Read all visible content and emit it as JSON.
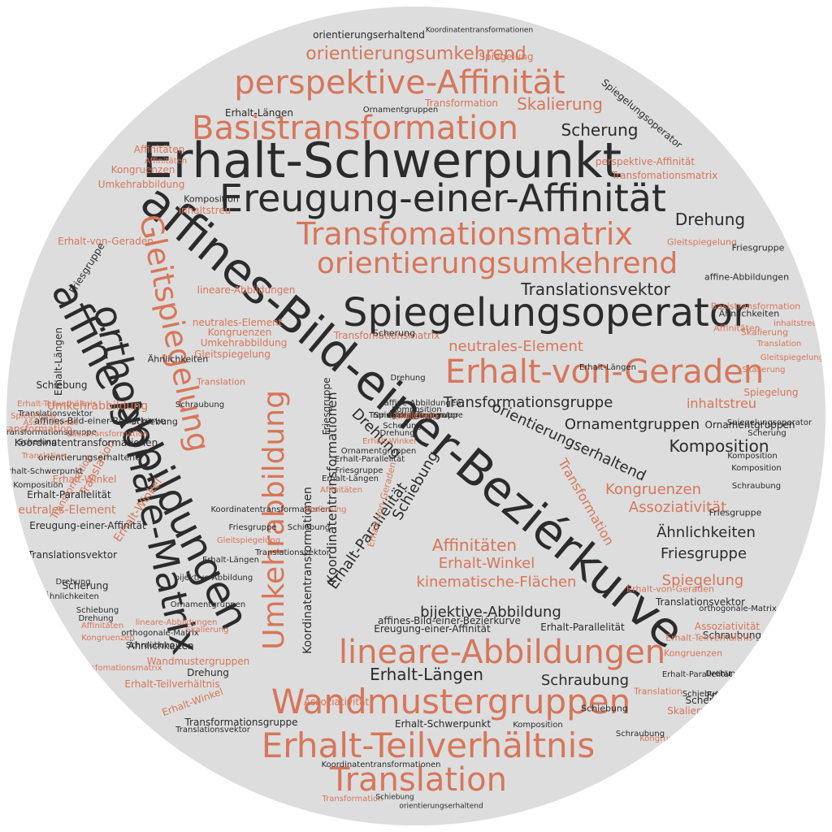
{
  "colors": {
    "dark": "#2b2b2b",
    "accent": "#d6765a",
    "background": "#dddddd"
  },
  "words": [
    {
      "text": "affines-Bild-einer-Beziérkurve",
      "style": "dark"
    },
    {
      "text": "Erhalt-Schwerpunkt",
      "style": "dark"
    },
    {
      "text": "Ereugung-einer-Affinität",
      "style": "dark"
    },
    {
      "text": "orthogonale-Matrix",
      "style": "dark"
    },
    {
      "text": "affine-Abbildungen",
      "style": "dark"
    },
    {
      "text": "Spiegelungsoperator",
      "style": "dark"
    },
    {
      "text": "Basistransformation",
      "style": "accent"
    },
    {
      "text": "Transfomationsmatrix",
      "style": "accent"
    },
    {
      "text": "perspektive-Affinität",
      "style": "accent"
    },
    {
      "text": "orientierungsumkehrend",
      "style": "accent"
    },
    {
      "text": "Erhalt-von-Geraden",
      "style": "accent"
    },
    {
      "text": "Gleitspiegelung",
      "style": "accent"
    },
    {
      "text": "Umkehrabbildung",
      "style": "accent"
    },
    {
      "text": "lineare-Abbildungen",
      "style": "accent"
    },
    {
      "text": "Wandmustergruppen",
      "style": "accent"
    },
    {
      "text": "Erhalt-Teilverhältnis",
      "style": "accent"
    },
    {
      "text": "Translation",
      "style": "accent"
    },
    {
      "text": "orientierungsumkehrend",
      "style": "accent"
    },
    {
      "text": "Skalierung",
      "style": "accent"
    },
    {
      "text": "Scherung",
      "style": "dark"
    },
    {
      "text": "Drehung",
      "style": "dark"
    },
    {
      "text": "Translationsvektor",
      "style": "dark"
    },
    {
      "text": "neutrales-Element",
      "style": "accent"
    },
    {
      "text": "Transformationsgruppe",
      "style": "dark"
    },
    {
      "text": "orientierungserhaltend",
      "style": "dark"
    },
    {
      "text": "Ornamentgruppen",
      "style": "dark"
    },
    {
      "text": "Komposition",
      "style": "dark"
    },
    {
      "text": "inhaltstreu",
      "style": "accent"
    },
    {
      "text": "Ähnlichkeiten",
      "style": "dark"
    },
    {
      "text": "Friesgruppe",
      "style": "dark"
    },
    {
      "text": "Spiegelung",
      "style": "accent"
    },
    {
      "text": "Kongruenzen",
      "style": "accent"
    },
    {
      "text": "Assoziativität",
      "style": "accent"
    },
    {
      "text": "Affinitäten",
      "style": "accent"
    },
    {
      "text": "Erhalt-Winkel",
      "style": "accent"
    },
    {
      "text": "kinematische-Flächen",
      "style": "accent"
    },
    {
      "text": "bijektive-Abbildung",
      "style": "dark"
    },
    {
      "text": "Erhalt-Längen",
      "style": "dark"
    },
    {
      "text": "Schraubung",
      "style": "dark"
    },
    {
      "text": "Koordinatentransformationen",
      "style": "dark"
    },
    {
      "text": "Erhalt-Parallelität",
      "style": "dark"
    },
    {
      "text": "Schiebung",
      "style": "dark"
    },
    {
      "text": "Drehung",
      "style": "dark"
    },
    {
      "text": "Transformation",
      "style": "accent"
    },
    {
      "text": "Friesgruppe",
      "style": "dark"
    },
    {
      "text": "Koordinatentransformationen",
      "style": "dark"
    },
    {
      "text": "Transfomationsmatrix",
      "style": "accent"
    },
    {
      "text": "Erhalt-von-Geraden",
      "style": "accent"
    },
    {
      "text": "Scherung",
      "style": "dark"
    },
    {
      "text": "Drehung",
      "style": "dark"
    },
    {
      "text": "Erhalt-Längen",
      "style": "dark"
    },
    {
      "text": "perspektive-Affinität",
      "style": "accent"
    },
    {
      "text": "Transfomationsmatrix",
      "style": "accent"
    },
    {
      "text": "Gleitspiegelung",
      "style": "accent"
    },
    {
      "text": "Spiegelungsoperator",
      "style": "dark"
    },
    {
      "text": "Transformation",
      "style": "accent"
    },
    {
      "text": "Ornamentgruppen",
      "style": "dark"
    },
    {
      "text": "Erhalt-Längen",
      "style": "dark"
    },
    {
      "text": "Spiegelung",
      "style": "accent"
    },
    {
      "text": "orientierungserhaltend",
      "style": "dark"
    },
    {
      "text": "Koordinatentransformationen",
      "style": "dark"
    },
    {
      "text": "Affinitäten",
      "style": "accent"
    },
    {
      "text": "Kongruenzen",
      "style": "accent"
    },
    {
      "text": "Umkehrabbildung",
      "style": "accent"
    },
    {
      "text": "Affinitäten",
      "style": "accent"
    },
    {
      "text": "Komposition",
      "style": "dark"
    },
    {
      "text": "inhaltstreu",
      "style": "accent"
    },
    {
      "text": "lineare-Abbildungen",
      "style": "accent"
    },
    {
      "text": "neutrales-Element",
      "style": "accent"
    },
    {
      "text": "Kongruenzen",
      "style": "accent"
    },
    {
      "text": "Umkehrabbildung",
      "style": "accent"
    },
    {
      "text": "Gleitspiegelung",
      "style": "accent"
    },
    {
      "text": "Translation",
      "style": "accent"
    },
    {
      "text": "Schraubung",
      "style": "dark"
    },
    {
      "text": "Ähnlichkeiten",
      "style": "dark"
    },
    {
      "text": "Schiebung",
      "style": "dark"
    },
    {
      "text": "Erhalt-Winkel",
      "style": "accent"
    },
    {
      "text": "Translation",
      "style": "accent"
    },
    {
      "text": "Transformation",
      "style": "accent"
    },
    {
      "text": "Ähnlichkeiten",
      "style": "dark"
    },
    {
      "text": "Wandmustergruppen",
      "style": "accent"
    },
    {
      "text": "Drehung",
      "style": "dark"
    },
    {
      "text": "Erhalt-Teilverhältnis",
      "style": "accent"
    },
    {
      "text": "Erhalt-Winkel",
      "style": "accent"
    },
    {
      "text": "Transformationsgruppe",
      "style": "dark"
    },
    {
      "text": "Translationsvektor",
      "style": "dark"
    },
    {
      "text": "Assoziativität",
      "style": "accent"
    },
    {
      "text": "Erhalt-Schwerpunkt",
      "style": "dark"
    },
    {
      "text": "Komposition",
      "style": "dark"
    },
    {
      "text": "Koordinatentransformationen",
      "style": "dark"
    },
    {
      "text": "Transformation",
      "style": "accent"
    },
    {
      "text": "Schiebung",
      "style": "dark"
    },
    {
      "text": "orientierungserhaltend",
      "style": "dark"
    },
    {
      "text": "affines-Bild-einer-Beziérkurve",
      "style": "dark"
    },
    {
      "text": "Ereugung-einer-Affinität",
      "style": "dark"
    },
    {
      "text": "Erhalt-Parallelität",
      "style": "dark"
    },
    {
      "text": "Translationsvektor",
      "style": "dark"
    },
    {
      "text": "orthogonale-Matrix",
      "style": "dark"
    },
    {
      "text": "Assoziativität",
      "style": "accent"
    },
    {
      "text": "Schraubung",
      "style": "dark"
    },
    {
      "text": "Kongruenzen",
      "style": "accent"
    },
    {
      "text": "Friesgruppe",
      "style": "dark"
    },
    {
      "text": "Scherung",
      "style": "dark"
    },
    {
      "text": "inhaltstreu",
      "style": "accent"
    },
    {
      "text": "Erhalt-Teilverhältnis",
      "style": "accent"
    },
    {
      "text": "Translation",
      "style": "accent"
    },
    {
      "text": "Schiebung",
      "style": "dark"
    },
    {
      "text": "Skalierung",
      "style": "accent"
    },
    {
      "text": "Kongruenzen",
      "style": "accent"
    },
    {
      "text": "Schraubung",
      "style": "dark"
    },
    {
      "text": "Scherung",
      "style": "dark"
    },
    {
      "text": "Erhalt-Parallelität",
      "style": "dark"
    },
    {
      "text": "Schiebung",
      "style": "dark"
    },
    {
      "text": "Drehung",
      "style": "dark"
    },
    {
      "text": "Erhalt-von-Geraden",
      "style": "accent"
    },
    {
      "text": "Friesgruppe",
      "style": "dark"
    },
    {
      "text": "Schraubung",
      "style": "dark"
    },
    {
      "text": "Skalierung",
      "style": "accent"
    },
    {
      "text": "Spiegelung",
      "style": "accent"
    },
    {
      "text": "Ähnlichkeiten",
      "style": "dark"
    },
    {
      "text": "Ornamentgruppen",
      "style": "dark"
    },
    {
      "text": "Komposition",
      "style": "dark"
    },
    {
      "text": "affine-Abbildungen",
      "style": "dark"
    },
    {
      "text": "Friesgruppe",
      "style": "dark"
    },
    {
      "text": "Basistransformation",
      "style": "accent"
    },
    {
      "text": "Affinitäten",
      "style": "accent"
    },
    {
      "text": "Gleitspiegelung",
      "style": "accent"
    },
    {
      "text": "Skalierung",
      "style": "accent"
    },
    {
      "text": "inhaltstreu",
      "style": "accent"
    },
    {
      "text": "Translation",
      "style": "accent"
    },
    {
      "text": "Spiegelungsoperator",
      "style": "dark"
    },
    {
      "text": "Scherung",
      "style": "dark"
    },
    {
      "text": "Komposition",
      "style": "dark"
    },
    {
      "text": "Erhalt-Längen",
      "style": "dark"
    },
    {
      "text": "neutrales-Element",
      "style": "accent"
    },
    {
      "text": "Ereugung-einer-Affinität",
      "style": "dark"
    },
    {
      "text": "Translationsvektor",
      "style": "dark"
    },
    {
      "text": "Erhalt-Parallelität",
      "style": "dark"
    },
    {
      "text": "Scherung",
      "style": "dark"
    },
    {
      "text": "Drehung",
      "style": "dark"
    },
    {
      "text": "Assoziativität",
      "style": "accent"
    },
    {
      "text": "Transformationsgruppe",
      "style": "dark"
    },
    {
      "text": "Schiebung",
      "style": "dark"
    },
    {
      "text": "Erhalt-von-Geraden",
      "style": "accent"
    },
    {
      "text": "Friesgruppe",
      "style": "dark"
    },
    {
      "text": "Umkehrabbildung",
      "style": "accent"
    },
    {
      "text": "affines-Bild-einer-Beziérkurve",
      "style": "dark"
    },
    {
      "text": "Basistransformation",
      "style": "accent"
    },
    {
      "text": "Koordinatentransformationen",
      "style": "dark"
    },
    {
      "text": "orientierungserhaltend",
      "style": "dark"
    },
    {
      "text": "Erhalt-Winkel",
      "style": "accent"
    },
    {
      "text": "Erhalt-Teilverhältnis",
      "style": "accent"
    },
    {
      "text": "Translationsvektor",
      "style": "dark"
    },
    {
      "text": "Transformation",
      "style": "accent"
    },
    {
      "text": "Scherung",
      "style": "dark"
    },
    {
      "text": "Erhalt-Schwerpunkt",
      "style": "dark"
    },
    {
      "text": "Spiegelung",
      "style": "accent"
    },
    {
      "text": "Translation",
      "style": "accent"
    },
    {
      "text": "Komposition",
      "style": "dark"
    },
    {
      "text": "Ähnlichkeiten",
      "style": "dark"
    },
    {
      "text": "Drehung",
      "style": "dark"
    },
    {
      "text": "Schiebung",
      "style": "dark"
    },
    {
      "text": "Affinitäten",
      "style": "accent"
    },
    {
      "text": "Kongruenzen",
      "style": "accent"
    },
    {
      "text": "Transfomationsmatrix",
      "style": "accent"
    },
    {
      "text": "Schraubung",
      "style": "dark"
    },
    {
      "text": "orthogonale-Matrix",
      "style": "dark"
    },
    {
      "text": "lineare-Abbildungen",
      "style": "accent"
    },
    {
      "text": "Skalierung",
      "style": "accent"
    },
    {
      "text": "Ornamentgruppen",
      "style": "dark"
    },
    {
      "text": "bijektive-Abbildung",
      "style": "dark"
    },
    {
      "text": "Erhalt-Längen",
      "style": "dark"
    },
    {
      "text": "Gleitspiegelung",
      "style": "accent"
    },
    {
      "text": "Friesgruppe",
      "style": "dark"
    },
    {
      "text": "Koordinatentransformationen",
      "style": "dark"
    },
    {
      "text": "Translationsvektor",
      "style": "dark"
    },
    {
      "text": "Schiebung",
      "style": "dark"
    },
    {
      "text": "Skalierung",
      "style": "accent"
    },
    {
      "text": "Affinitäten",
      "style": "accent"
    },
    {
      "text": "Erhalt-Längen",
      "style": "dark"
    },
    {
      "text": "Friesgruppe",
      "style": "dark"
    },
    {
      "text": "Erhalt-Parallelität",
      "style": "dark"
    },
    {
      "text": "Ornamentgruppen",
      "style": "dark"
    },
    {
      "text": "Erhalt-Winkel",
      "style": "accent"
    },
    {
      "text": "Drehung",
      "style": "dark"
    },
    {
      "text": "Scherung",
      "style": "dark"
    },
    {
      "text": "Translation",
      "style": "accent"
    },
    {
      "text": "Komposition",
      "style": "dark"
    },
    {
      "text": "affine-Abbildungen",
      "style": "dark"
    },
    {
      "text": "Kongruenzen",
      "style": "accent"
    },
    {
      "text": "Transformationsgruppe",
      "style": "dark"
    },
    {
      "text": "Schraubung",
      "style": "dark"
    },
    {
      "text": "Friesgruppe",
      "style": "dark"
    },
    {
      "text": "inhaltstreu",
      "style": "accent"
    },
    {
      "text": "Ähnlichkeiten",
      "style": "dark"
    },
    {
      "text": "Schiebung",
      "style": "dark"
    },
    {
      "text": "Schraubung",
      "style": "dark"
    },
    {
      "text": "Spiegelungsoperator",
      "style": "dark"
    },
    {
      "text": "Skalierung",
      "style": "accent"
    }
  ]
}
